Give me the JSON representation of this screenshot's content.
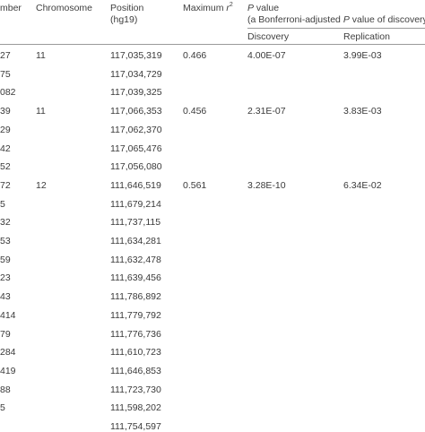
{
  "header": {
    "col0": "mber",
    "chromosome": "Chromosome",
    "position_line1": "Position",
    "position_line2": "(hg19)",
    "max_r_prefix": "Maximum ",
    "max_r_var": "r",
    "max_r_sup": "2",
    "pvalue_var": "P",
    "pvalue_rest": " value",
    "pvalue_line2_pre": "(a Bonferroni-adjusted ",
    "pvalue_line2_var": "P",
    "pvalue_line2_post": " value of discovery",
    "discovery": "Discovery",
    "replication": "Replication"
  },
  "rows": [
    {
      "c0": "27",
      "c1": "11",
      "c2": "117,035,319",
      "c3": "0.466",
      "c4": "4.00E-07",
      "c5": "3.99E-03"
    },
    {
      "c0": "75",
      "c1": "",
      "c2": "117,034,729",
      "c3": "",
      "c4": "",
      "c5": ""
    },
    {
      "c0": "082",
      "c1": "",
      "c2": "117,039,325",
      "c3": "",
      "c4": "",
      "c5": ""
    },
    {
      "c0": "39",
      "c1": "11",
      "c2": "117,066,353",
      "c3": "0.456",
      "c4": "2.31E-07",
      "c5": "3.83E-03"
    },
    {
      "c0": "29",
      "c1": "",
      "c2": "117,062,370",
      "c3": "",
      "c4": "",
      "c5": ""
    },
    {
      "c0": "42",
      "c1": "",
      "c2": "117,065,476",
      "c3": "",
      "c4": "",
      "c5": ""
    },
    {
      "c0": "52",
      "c1": "",
      "c2": "117,056,080",
      "c3": "",
      "c4": "",
      "c5": ""
    },
    {
      "c0": "72",
      "c1": "12",
      "c2": "111,646,519",
      "c3": "0.561",
      "c4": "3.28E-10",
      "c5": "6.34E-02"
    },
    {
      "c0": "5",
      "c1": "",
      "c2": "111,679,214",
      "c3": "",
      "c4": "",
      "c5": ""
    },
    {
      "c0": "32",
      "c1": "",
      "c2": "111,737,115",
      "c3": "",
      "c4": "",
      "c5": ""
    },
    {
      "c0": "53",
      "c1": "",
      "c2": "111,634,281",
      "c3": "",
      "c4": "",
      "c5": ""
    },
    {
      "c0": "59",
      "c1": "",
      "c2": "111,632,478",
      "c3": "",
      "c4": "",
      "c5": ""
    },
    {
      "c0": "23",
      "c1": "",
      "c2": "111,639,456",
      "c3": "",
      "c4": "",
      "c5": ""
    },
    {
      "c0": "43",
      "c1": "",
      "c2": "111,786,892",
      "c3": "",
      "c4": "",
      "c5": ""
    },
    {
      "c0": "414",
      "c1": "",
      "c2": "111,779,792",
      "c3": "",
      "c4": "",
      "c5": ""
    },
    {
      "c0": "79",
      "c1": "",
      "c2": "111,776,736",
      "c3": "",
      "c4": "",
      "c5": ""
    },
    {
      "c0": "284",
      "c1": "",
      "c2": "111,610,723",
      "c3": "",
      "c4": "",
      "c5": ""
    },
    {
      "c0": "419",
      "c1": "",
      "c2": "111,646,853",
      "c3": "",
      "c4": "",
      "c5": ""
    },
    {
      "c0": "88",
      "c1": "",
      "c2": "111,723,730",
      "c3": "",
      "c4": "",
      "c5": ""
    },
    {
      "c0": "5",
      "c1": "",
      "c2": "111,598,202",
      "c3": "",
      "c4": "",
      "c5": ""
    },
    {
      "c0": "",
      "c1": "",
      "c2": "111,754,597",
      "c3": "",
      "c4": "",
      "c5": ""
    }
  ]
}
